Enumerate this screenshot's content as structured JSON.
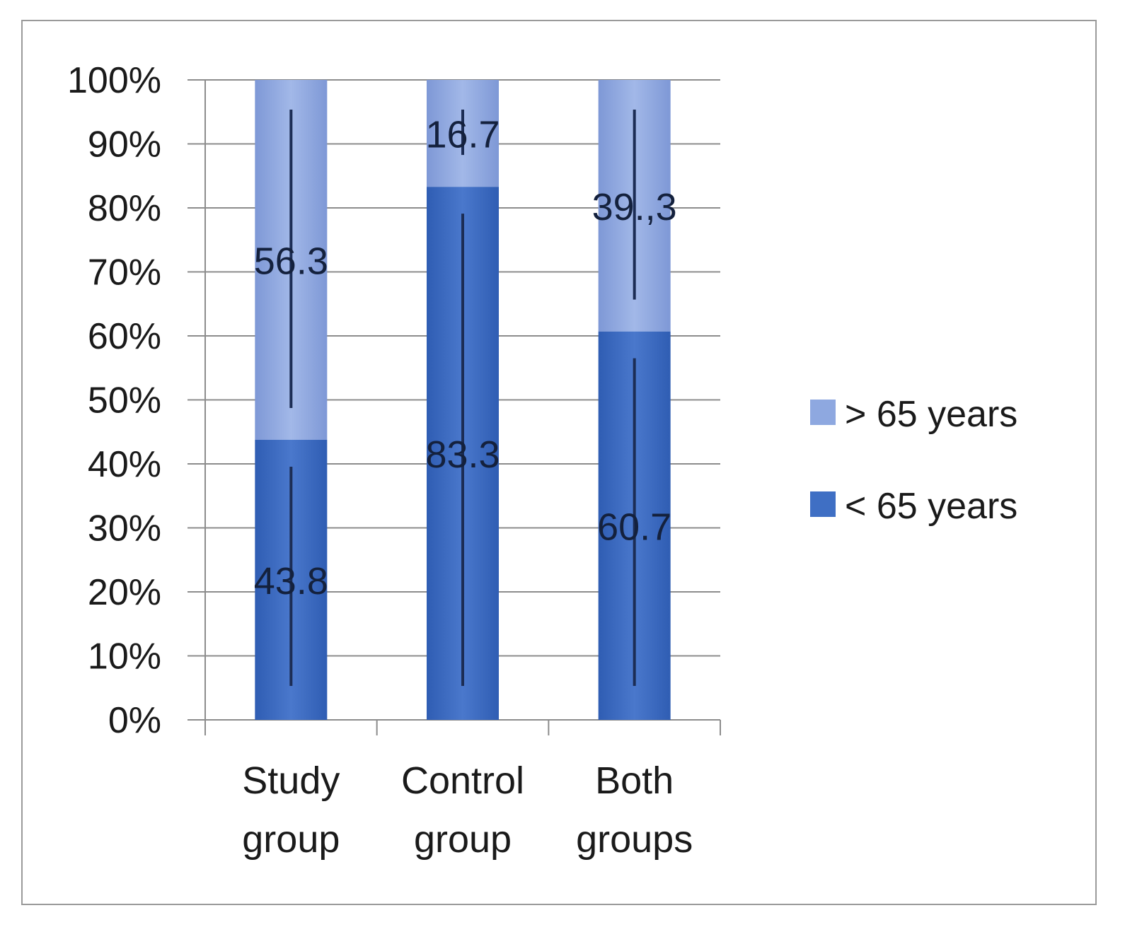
{
  "chart_data": {
    "type": "bar",
    "stacked": true,
    "percent_stacked": true,
    "categories": [
      [
        "Study",
        "group"
      ],
      [
        "Control",
        "group"
      ],
      [
        "Both",
        "groups"
      ]
    ],
    "series": [
      {
        "name": "< 65 years",
        "values": [
          43.8,
          83.3,
          60.7
        ],
        "labels": [
          "43.8",
          "83.3",
          "60.7"
        ],
        "color": "#3f6fc4"
      },
      {
        "name": "> 65 years",
        "values": [
          56.3,
          16.7,
          39.3
        ],
        "labels": [
          "56.3",
          "16.7",
          "39.,3"
        ],
        "color": "#8ea8e0"
      }
    ],
    "y_ticks": [
      "0%",
      "10%",
      "20%",
      "30%",
      "40%",
      "50%",
      "60%",
      "70%",
      "80%",
      "90%",
      "100%"
    ],
    "ylim": [
      0,
      100
    ],
    "grid": true,
    "legend": {
      "position": "right",
      "order": [
        "> 65 years",
        "< 65 years"
      ]
    }
  }
}
